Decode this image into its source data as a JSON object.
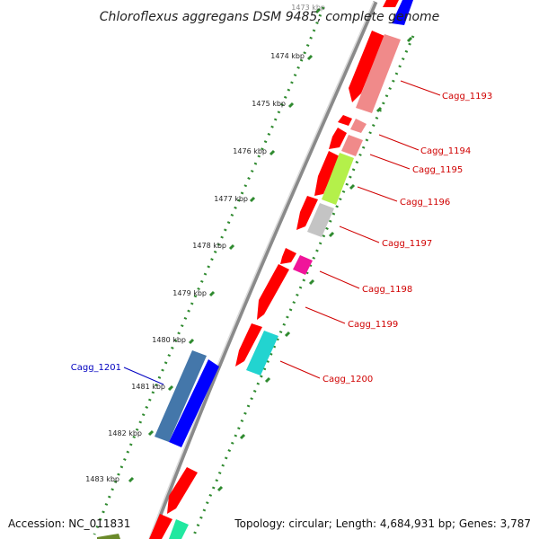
{
  "title": "Chloroflexus aggregans DSM 9485, complete genome",
  "footer": {
    "accession": "Accession: NC_011831",
    "summary": "Topology: circular; Length: 4,684,931 bp; Genes: 3,787"
  },
  "colors": {
    "backbone": "#8a8a8a",
    "tick": "#2f8a2f",
    "forward_label": "#d00000",
    "reverse_label": "#0000c0",
    "leader_forward": "#d00000",
    "leader_reverse": "#0000c0"
  },
  "kbp_labels": [
    "1473 kbp",
    "1474 kbp",
    "1475 kbp",
    "1476 kbp",
    "1477 kbp",
    "1478 kbp",
    "1479 kbp",
    "1480 kbp",
    "1481 kbp",
    "1482 kbp",
    "1483 kbp"
  ],
  "genes": [
    {
      "label": "Cagg_1193",
      "strand": "forward",
      "color": "#f08a8a",
      "icon": "gene-arrow"
    },
    {
      "label": "Cagg_1194",
      "strand": "forward",
      "color": "#f08a8a",
      "icon": "gene-arrow"
    },
    {
      "label": "Cagg_1195",
      "strand": "forward",
      "color": "#f08a8a",
      "icon": "gene-arrow"
    },
    {
      "label": "Cagg_1196",
      "strand": "forward",
      "color": "#b4f04a",
      "icon": "gene-arrow"
    },
    {
      "label": "Cagg_1197",
      "strand": "forward",
      "color": "#c4c4c4",
      "icon": "gene-arrow"
    },
    {
      "label": "Cagg_1198",
      "strand": "forward",
      "color": "#f0149a",
      "icon": "gene-arrow"
    },
    {
      "label": "Cagg_1199",
      "strand": "forward",
      "color": "#ff0000",
      "icon": "gene-arrow"
    },
    {
      "label": "Cagg_1200",
      "strand": "forward",
      "color": "#22d4d0",
      "icon": "gene-arrow"
    },
    {
      "label": "Cagg_1201",
      "strand": "reverse",
      "color": "#4477aa",
      "icon": "gene-arrow"
    }
  ]
}
